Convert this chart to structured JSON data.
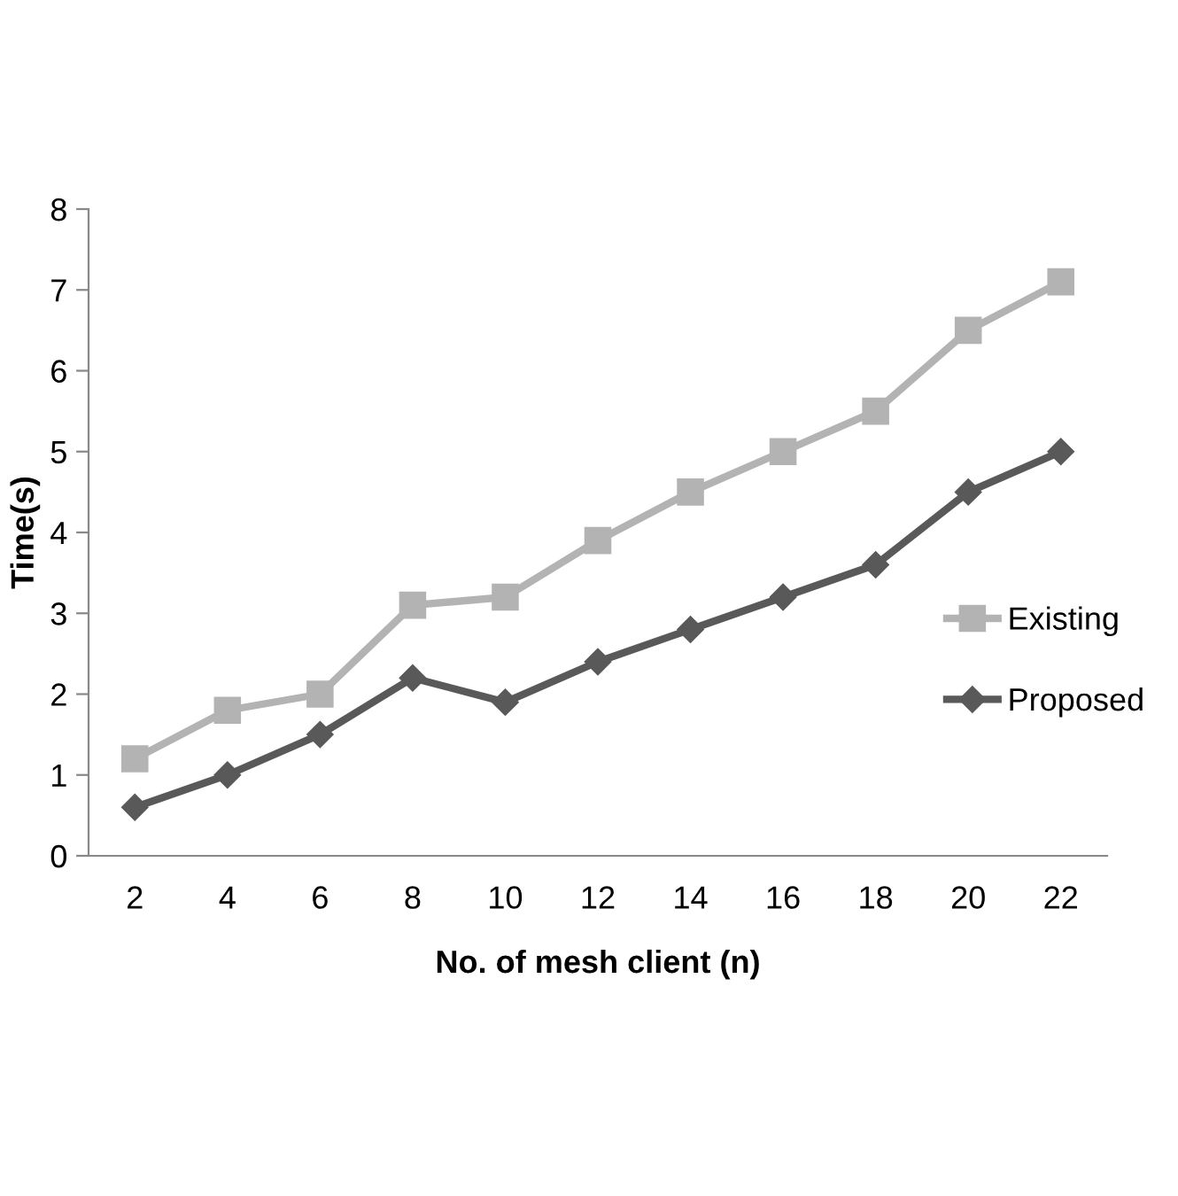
{
  "chart_data": {
    "type": "line",
    "xlabel": "No. of mesh client (n)",
    "ylabel": "Time(s)",
    "categories": [
      "2",
      "4",
      "6",
      "8",
      "10",
      "12",
      "14",
      "16",
      "18",
      "20",
      "22"
    ],
    "series": [
      {
        "name": "Existing",
        "color": "#b3b3b3",
        "marker": "square",
        "values": [
          1.2,
          1.8,
          2.0,
          3.1,
          3.2,
          3.9,
          4.5,
          5.0,
          5.5,
          6.5,
          7.1
        ]
      },
      {
        "name": "Proposed",
        "color": "#595959",
        "marker": "diamond",
        "values": [
          0.6,
          1.0,
          1.5,
          2.2,
          1.9,
          2.4,
          2.8,
          3.2,
          3.6,
          4.5,
          5.0
        ]
      }
    ],
    "ylim": [
      0,
      8
    ],
    "yticks": [
      0,
      1,
      2,
      3,
      4,
      5,
      6,
      7,
      8
    ],
    "grid": false,
    "legend": "right",
    "line_style": "solid"
  }
}
